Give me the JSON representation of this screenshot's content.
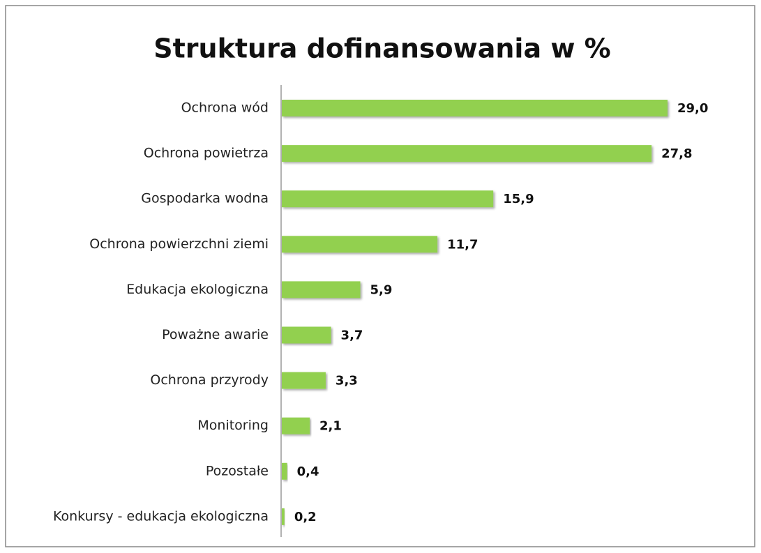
{
  "chart_data": {
    "type": "bar",
    "orientation": "horizontal",
    "title": "Struktura dofinansowania w %",
    "categories": [
      "Ochrona wód",
      "Ochrona powietrza",
      "Gospodarka wodna",
      "Ochrona powierzchni ziemi",
      "Edukacja ekologiczna",
      "Poważne awarie",
      "Ochrona przyrody",
      "Monitoring",
      "Pozostałe",
      "Konkursy - edukacja ekologiczna"
    ],
    "values": [
      29.0,
      27.8,
      15.9,
      11.7,
      5.9,
      3.7,
      3.3,
      2.1,
      0.4,
      0.2
    ],
    "value_labels": [
      "29,0",
      "27,8",
      "15,9",
      "11,7",
      "5,9",
      "3,7",
      "3,3",
      "2,1",
      "0,4",
      "0,2"
    ],
    "color": "#92d050"
  }
}
